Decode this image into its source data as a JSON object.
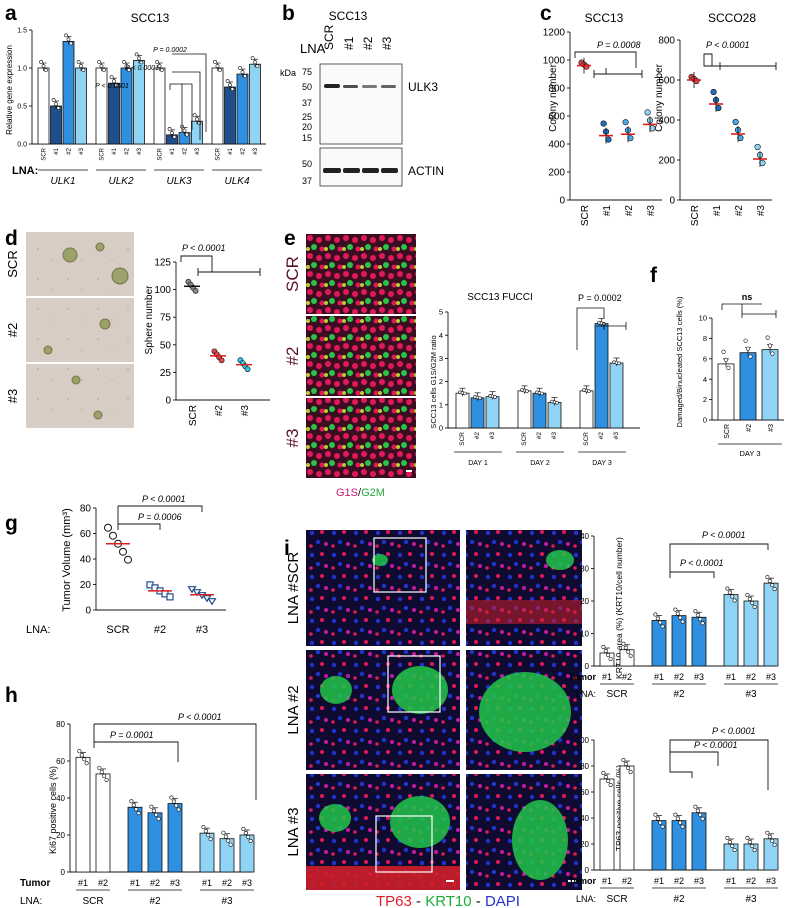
{
  "colors": {
    "bar_ctrl": "#ffffff",
    "bar_dark": "#1f4e8c",
    "bar_mid": "#2f8fe0",
    "bar_light": "#8fd3f5",
    "fluor_red": "#e0195a",
    "fluor_green": "#29c34a",
    "dapi_blue": "#2233cc",
    "red_line": "#e01e1e"
  },
  "panels": {
    "a": {
      "letter": "a",
      "title": "SCC13",
      "ylabel": "Relative gene expression",
      "lna": "LNA:",
      "groups": [
        "ULK1",
        "ULK2",
        "ULK3",
        "ULK4"
      ],
      "ticks": [
        "SCR",
        "#1",
        "#2",
        "#3"
      ],
      "p1": "P < 0.0001",
      "p2": "P < 0.0001",
      "p3": "P = 0.0002"
    },
    "b": {
      "letter": "b",
      "title": "SCC13",
      "lna": "LNA",
      "lanes": [
        "SCR",
        "#1",
        "#2",
        "#3"
      ],
      "kda": "kDa",
      "markers_top": [
        "75",
        "50",
        "37",
        "25",
        "20",
        "15"
      ],
      "markers_bot": [
        "50",
        "37"
      ],
      "band1": "ULK3",
      "band2": "ACTIN"
    },
    "c": {
      "letter": "c",
      "title1": "SCC13",
      "title2": "SCCO28",
      "ylabel": "Colony number",
      "p1": "P = 0.0008",
      "p2": "P < 0.0001",
      "ticks": [
        "SCR",
        "#1",
        "#2",
        "#3"
      ],
      "y1": [
        "0",
        "200",
        "400",
        "600",
        "800",
        "1000",
        "1200"
      ],
      "y2": [
        "0",
        "200",
        "400",
        "600",
        "800"
      ]
    },
    "d": {
      "letter": "d",
      "rows": [
        "SCR",
        "#2",
        "#3"
      ],
      "ylabel": "Sphere number",
      "p": "P < 0.0001",
      "ticks": [
        "SCR",
        "#2",
        "#3"
      ],
      "y": [
        "0",
        "25",
        "50",
        "75",
        "100",
        "125"
      ]
    },
    "e": {
      "letter": "e",
      "rows": [
        "SCR",
        "#2",
        "#3"
      ],
      "title": "SCC13 FUCCI",
      "ylabel": "SCC13 cells G1S/G2M ratio",
      "p": "P = 0.0002",
      "days": [
        "DAY 1",
        "DAY 2",
        "DAY 3"
      ],
      "ticks": [
        "SCR",
        "#2",
        "#3"
      ],
      "y": [
        "0",
        "1",
        "2",
        "3",
        "4",
        "5"
      ],
      "legend_a": "G1S",
      "legend_sep": "/",
      "legend_b": "G2M"
    },
    "f": {
      "letter": "f",
      "ylabel": "Damaged/Binucleated SCC13 cells (%)",
      "ns": "ns",
      "ticks": [
        "SCR",
        "#2",
        "#3"
      ],
      "day": "DAY 3",
      "y": [
        "0",
        "2",
        "4",
        "6",
        "8",
        "10"
      ]
    },
    "g": {
      "letter": "g",
      "ylabel": "Tumor Volume (mm³)",
      "p1": "P = 0.0006",
      "p2": "P < 0.0001",
      "lna": "LNA:",
      "ticks": [
        "SCR",
        "#2",
        "#3"
      ],
      "y": [
        "0",
        "20",
        "40",
        "60",
        "80"
      ]
    },
    "h": {
      "letter": "h",
      "ylabel": "Ki67 positive cells (%)",
      "p1": "P = 0.0001",
      "p2": "P < 0.0001",
      "tumor": "Tumor",
      "lna": "LNA:",
      "tumors": [
        "#1",
        "#2",
        "#1",
        "#2",
        "#3",
        "#1",
        "#2",
        "#3"
      ],
      "groups": [
        "SCR",
        "#2",
        "#3"
      ],
      "y": [
        "0",
        "20",
        "40",
        "60",
        "80"
      ]
    },
    "i": {
      "letter": "i",
      "rows": [
        "LNA #SCR",
        "LNA #2",
        "LNA #3"
      ],
      "stain_a": "TP63",
      "stain_sep": " - ",
      "stain_b": "KRT10",
      "stain_sep2": " - ",
      "stain_c": "DAPI",
      "top_ylabel": "KRT10 area (%) (KRT10/cell number)",
      "top_p1": "P < 0.0001",
      "top_p2": "P < 0.0001",
      "top_y": [
        "0",
        "10",
        "20",
        "30",
        "40"
      ],
      "bot_ylabel": "TP63 positive cells (%)",
      "bot_p1": "P < 0.0001",
      "bot_p2": "P < 0.0001",
      "bot_p3": "P < 0.0001",
      "bot_y": [
        "0",
        "20",
        "40",
        "60",
        "80",
        "100"
      ],
      "tumor": "Tumor",
      "lna": "LNA:",
      "tumors": [
        "#1",
        "#2",
        "#1",
        "#2",
        "#3",
        "#1",
        "#2",
        "#3"
      ],
      "groups": [
        "SCR",
        "#2",
        "#3"
      ]
    }
  },
  "chart_data": [
    {
      "panel": "a",
      "type": "bar",
      "title": "SCC13",
      "ylabel": "Relative gene expression",
      "ylim": [
        0,
        1.5
      ],
      "categories": [
        "ULK1",
        "ULK2",
        "ULK3",
        "ULK4"
      ],
      "series": [
        {
          "name": "SCR",
          "values": [
            1.0,
            1.0,
            1.0,
            1.0
          ]
        },
        {
          "name": "#1",
          "values": [
            0.5,
            0.8,
            0.12,
            0.75
          ]
        },
        {
          "name": "#2",
          "values": [
            1.35,
            1.0,
            0.15,
            0.92
          ]
        },
        {
          "name": "#3",
          "values": [
            1.0,
            1.1,
            0.3,
            1.05
          ]
        }
      ]
    },
    {
      "panel": "c",
      "type": "scatter",
      "title": "SCC13",
      "ylabel": "Colony number",
      "ylim": [
        0,
        1200
      ],
      "categories": [
        "SCR",
        "#1",
        "#2",
        "#3"
      ],
      "values": [
        960,
        460,
        470,
        540
      ]
    },
    {
      "panel": "c",
      "type": "scatter",
      "title": "SCCO28",
      "ylabel": "Colony number",
      "ylim": [
        0,
        800
      ],
      "categories": [
        "SCR",
        "#1",
        "#2",
        "#3"
      ],
      "values": [
        600,
        480,
        330,
        205
      ]
    },
    {
      "panel": "d",
      "type": "scatter",
      "ylabel": "Sphere number",
      "ylim": [
        0,
        125
      ],
      "categories": [
        "SCR",
        "#2",
        "#3"
      ],
      "values": [
        103,
        40,
        32
      ]
    },
    {
      "panel": "e",
      "type": "bar",
      "title": "SCC13 FUCCI",
      "ylabel": "SCC13 cells G1S/G2M ratio",
      "ylim": [
        0,
        5
      ],
      "categories": [
        "DAY 1",
        "DAY 2",
        "DAY 3"
      ],
      "series": [
        {
          "name": "SCR",
          "values": [
            1.5,
            1.6,
            1.6
          ]
        },
        {
          "name": "#2",
          "values": [
            1.3,
            1.5,
            4.5
          ]
        },
        {
          "name": "#3",
          "values": [
            1.35,
            1.1,
            2.8
          ]
        }
      ]
    },
    {
      "panel": "f",
      "type": "bar",
      "ylabel": "Damaged/Binucleated SCC13 cells (%)",
      "ylim": [
        0,
        10
      ],
      "categories": [
        "SCR",
        "#2",
        "#3"
      ],
      "values": [
        5.5,
        6.6,
        6.9
      ]
    },
    {
      "panel": "g",
      "type": "scatter",
      "ylabel": "Tumor Volume (mm³)",
      "ylim": [
        0,
        80
      ],
      "categories": [
        "SCR",
        "#2",
        "#3"
      ],
      "values": [
        52,
        15,
        12
      ]
    },
    {
      "panel": "h",
      "type": "bar",
      "ylabel": "Ki67 positive cells (%)",
      "ylim": [
        0,
        80
      ],
      "categories": [
        "#1",
        "#2",
        "#1",
        "#2",
        "#3",
        "#1",
        "#2",
        "#3"
      ],
      "values": [
        62,
        53,
        35,
        32,
        37,
        21,
        18,
        20
      ]
    },
    {
      "panel": "i",
      "type": "bar",
      "ylabel": "KRT10 area (%) (KRT10/cell number)",
      "ylim": [
        0,
        40
      ],
      "categories": [
        "#1",
        "#2",
        "#1",
        "#2",
        "#3",
        "#1",
        "#2",
        "#3"
      ],
      "values": [
        4,
        5,
        14,
        15.5,
        15,
        22,
        20,
        25.5
      ]
    },
    {
      "panel": "i",
      "type": "bar",
      "ylabel": "TP63 positive cells (%)",
      "ylim": [
        0,
        100
      ],
      "categories": [
        "#1",
        "#2",
        "#1",
        "#2",
        "#3",
        "#1",
        "#2",
        "#3"
      ],
      "values": [
        70,
        80,
        38,
        38,
        44,
        20,
        20,
        24
      ]
    }
  ]
}
